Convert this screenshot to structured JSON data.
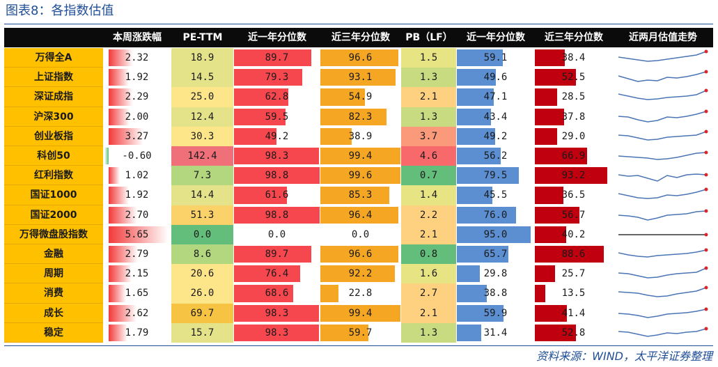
{
  "title": "图表8：各指数估值",
  "source": "资料来源：WIND，太平洋证券整理",
  "headers": [
    "",
    "本周涨跌幅",
    "PE-TTM",
    "近一年分位数",
    "近三年分位数",
    "PB（LF）",
    "近一年分位数",
    "近三年分位数",
    "近两月估值走势"
  ],
  "colors": {
    "header_bg": "#0b0b0b",
    "name_bg": "#ffc000",
    "weekly_bar": "#f23a3a",
    "pe_pct_1y": "#f7474e",
    "pe_pct_3y": "#f5a623",
    "pb_pct_1y": "#5b8fd1",
    "pb_pct_3y": "#c0000f",
    "spark": "#4a74b4",
    "spark_dot": "#d9262c"
  },
  "rows": [
    {
      "name": "万得全A",
      "weekly": "2.32",
      "pe": "18.9",
      "pe1": "89.7",
      "pe3": "96.6",
      "pb": "1.5",
      "pb1": "59.1",
      "pb3": "38.4"
    },
    {
      "name": "上证指数",
      "weekly": "1.92",
      "pe": "14.5",
      "pe1": "79.3",
      "pe3": "93.1",
      "pb": "1.3",
      "pb1": "49.6",
      "pb3": "52.5"
    },
    {
      "name": "深证成指",
      "weekly": "2.29",
      "pe": "25.0",
      "pe1": "62.8",
      "pe3": "54.9",
      "pb": "2.1",
      "pb1": "47.1",
      "pb3": "28.5"
    },
    {
      "name": "沪深300",
      "weekly": "2.00",
      "pe": "12.4",
      "pe1": "59.5",
      "pe3": "82.3",
      "pb": "1.3",
      "pb1": "43.4",
      "pb3": "37.8"
    },
    {
      "name": "创业板指",
      "weekly": "3.27",
      "pe": "30.3",
      "pe1": "49.2",
      "pe3": "38.9",
      "pb": "3.7",
      "pb1": "49.2",
      "pb3": "29.0"
    },
    {
      "name": "科创50",
      "weekly": "-0.60",
      "pe": "142.4",
      "pe1": "98.3",
      "pe3": "99.4",
      "pb": "4.6",
      "pb1": "56.2",
      "pb3": "66.9"
    },
    {
      "name": "红利指数",
      "weekly": "1.02",
      "pe": "7.3",
      "pe1": "98.8",
      "pe3": "99.6",
      "pb": "0.7",
      "pb1": "79.5",
      "pb3": "93.2"
    },
    {
      "name": "国证1000",
      "weekly": "1.92",
      "pe": "14.4",
      "pe1": "61.6",
      "pe3": "85.3",
      "pb": "1.4",
      "pb1": "45.5",
      "pb3": "36.5"
    },
    {
      "name": "国证2000",
      "weekly": "2.70",
      "pe": "51.3",
      "pe1": "98.8",
      "pe3": "96.4",
      "pb": "2.2",
      "pb1": "76.0",
      "pb3": "56.7"
    },
    {
      "name": "万得微盘股指数",
      "weekly": "5.65",
      "pe": "0.0",
      "pe1": "0.0",
      "pe3": "0.0",
      "pb": "2.1",
      "pb1": "95.0",
      "pb3": "40.2"
    },
    {
      "name": "金融",
      "weekly": "2.79",
      "pe": "8.6",
      "pe1": "89.7",
      "pe3": "96.6",
      "pb": "0.8",
      "pb1": "65.7",
      "pb3": "88.6"
    },
    {
      "name": "周期",
      "weekly": "2.15",
      "pe": "20.6",
      "pe1": "76.4",
      "pe3": "92.2",
      "pb": "1.6",
      "pb1": "29.8",
      "pb3": "25.7"
    },
    {
      "name": "消费",
      "weekly": "1.65",
      "pe": "26.0",
      "pe1": "68.6",
      "pe3": "22.8",
      "pb": "2.7",
      "pb1": "38.8",
      "pb3": "13.5"
    },
    {
      "name": "成长",
      "weekly": "2.62",
      "pe": "69.7",
      "pe1": "98.3",
      "pe3": "99.4",
      "pb": "2.1",
      "pb1": "59.9",
      "pb3": "41.4"
    },
    {
      "name": "稳定",
      "weekly": "1.79",
      "pe": "15.7",
      "pe1": "98.3",
      "pe3": "59.7",
      "pb": "1.3",
      "pb1": "31.4",
      "pb3": "52.8"
    }
  ],
  "sparklines": [
    [
      0.55,
      0.45,
      0.35,
      0.25,
      0.3,
      0.4,
      0.5,
      0.6,
      0.7,
      0.95
    ],
    [
      0.6,
      0.4,
      0.2,
      0.3,
      0.25,
      0.5,
      0.45,
      0.55,
      0.7,
      0.9
    ],
    [
      0.7,
      0.55,
      0.4,
      0.3,
      0.35,
      0.45,
      0.5,
      0.55,
      0.65,
      0.95
    ],
    [
      0.55,
      0.5,
      0.3,
      0.15,
      0.25,
      0.5,
      0.45,
      0.55,
      0.7,
      0.9
    ],
    [
      0.6,
      0.55,
      0.4,
      0.25,
      0.3,
      0.45,
      0.5,
      0.55,
      0.6,
      0.85
    ],
    [
      0.5,
      0.45,
      0.4,
      0.35,
      0.25,
      0.3,
      0.4,
      0.55,
      0.7,
      0.75
    ],
    [
      0.55,
      0.45,
      0.5,
      0.3,
      0.1,
      0.5,
      0.35,
      0.55,
      0.6,
      0.55
    ],
    [
      0.6,
      0.45,
      0.3,
      0.25,
      0.3,
      0.5,
      0.45,
      0.55,
      0.7,
      0.9
    ],
    [
      0.5,
      0.45,
      0.35,
      0.15,
      0.3,
      0.5,
      0.55,
      0.6,
      0.75,
      0.8
    ],
    [
      0.5,
      0.5,
      0.5,
      0.5,
      0.5,
      0.5,
      0.5,
      0.5,
      0.5,
      0.5
    ],
    [
      0.6,
      0.45,
      0.35,
      0.3,
      0.4,
      0.45,
      0.5,
      0.55,
      0.65,
      0.8
    ],
    [
      0.55,
      0.5,
      0.35,
      0.2,
      0.25,
      0.4,
      0.5,
      0.55,
      0.6,
      0.9
    ],
    [
      0.6,
      0.55,
      0.5,
      0.35,
      0.25,
      0.3,
      0.45,
      0.55,
      0.65,
      0.9
    ],
    [
      0.5,
      0.45,
      0.35,
      0.2,
      0.3,
      0.45,
      0.5,
      0.55,
      0.65,
      0.8
    ],
    [
      0.6,
      0.55,
      0.4,
      0.25,
      0.35,
      0.5,
      0.45,
      0.55,
      0.6,
      0.8
    ]
  ]
}
